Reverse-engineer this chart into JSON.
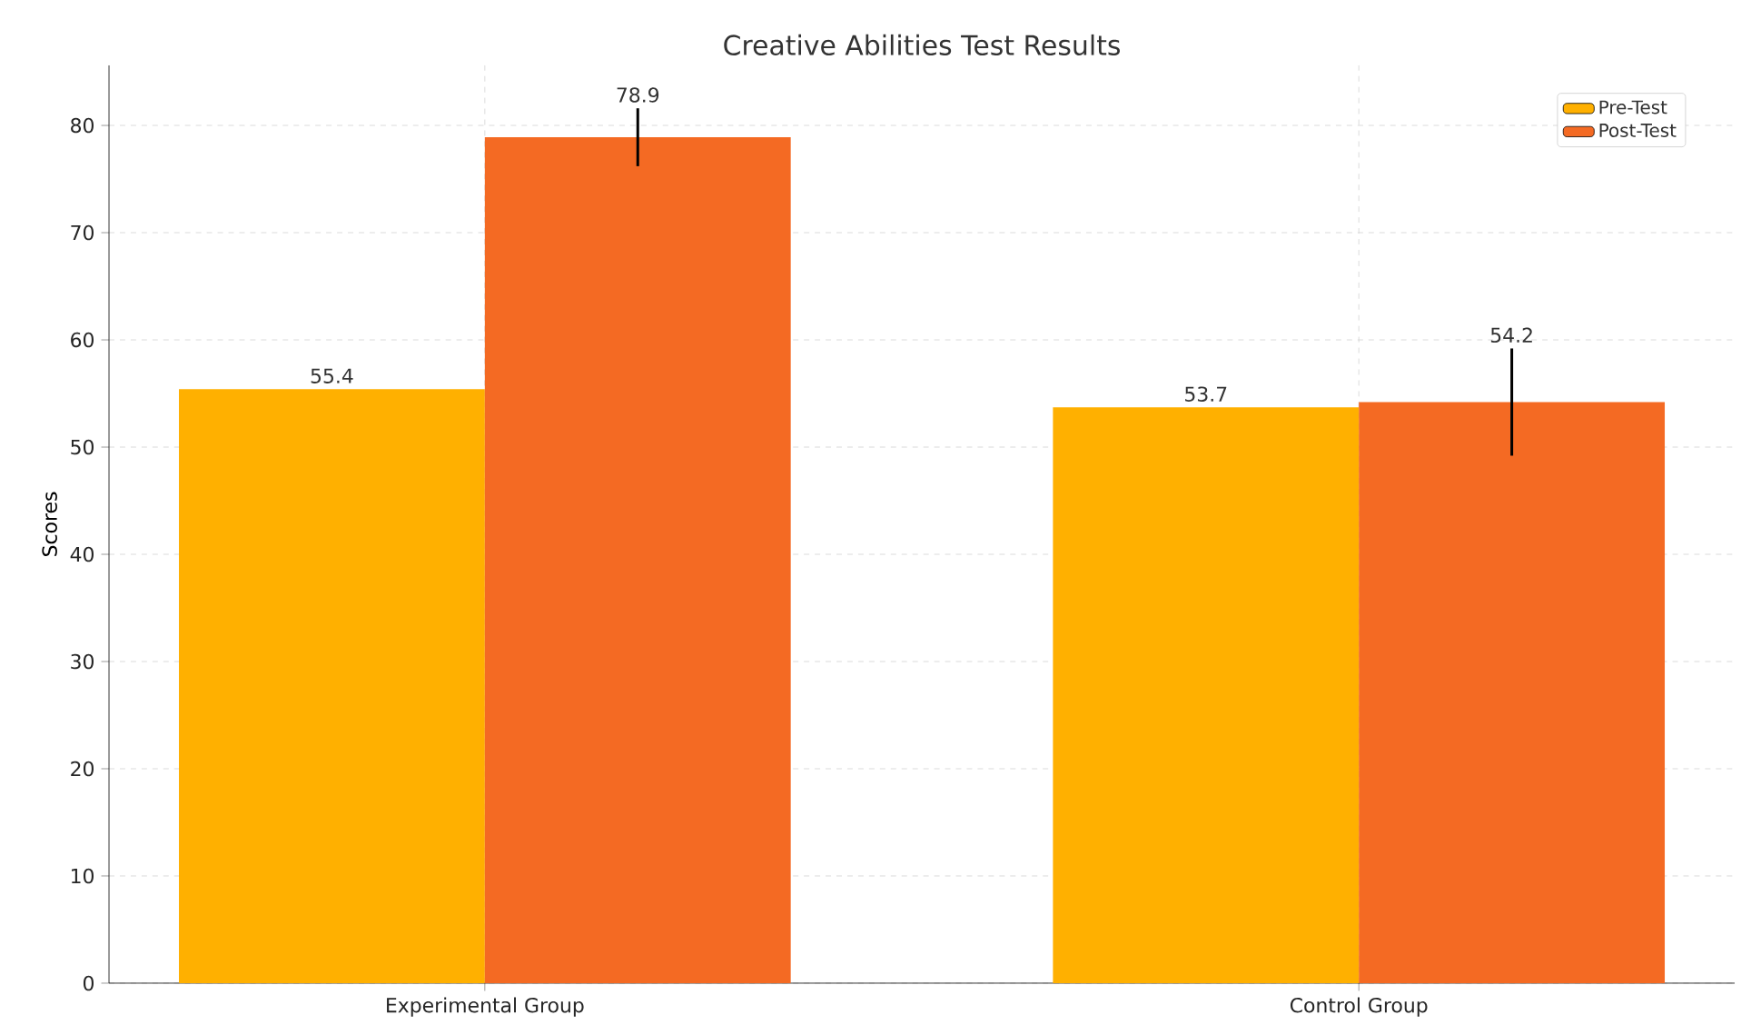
{
  "chart_data": {
    "type": "bar",
    "title": "Creative Abilities Test Results",
    "ylabel": "Scores",
    "categories": [
      "Experimental Group",
      "Control Group"
    ],
    "series": [
      {
        "name": "Pre-Test",
        "color": "#ffb000",
        "values": [
          55.4,
          53.7
        ]
      },
      {
        "name": "Post-Test",
        "color": "#f46a23",
        "values": [
          78.9,
          54.2
        ],
        "errors": [
          2.7,
          5.0
        ]
      }
    ],
    "ylim": [
      0,
      85.6
    ],
    "yticks": [
      0,
      10,
      20,
      30,
      40,
      50,
      60,
      70,
      80
    ],
    "grid": true,
    "legend": "top right",
    "data_labels": true
  }
}
